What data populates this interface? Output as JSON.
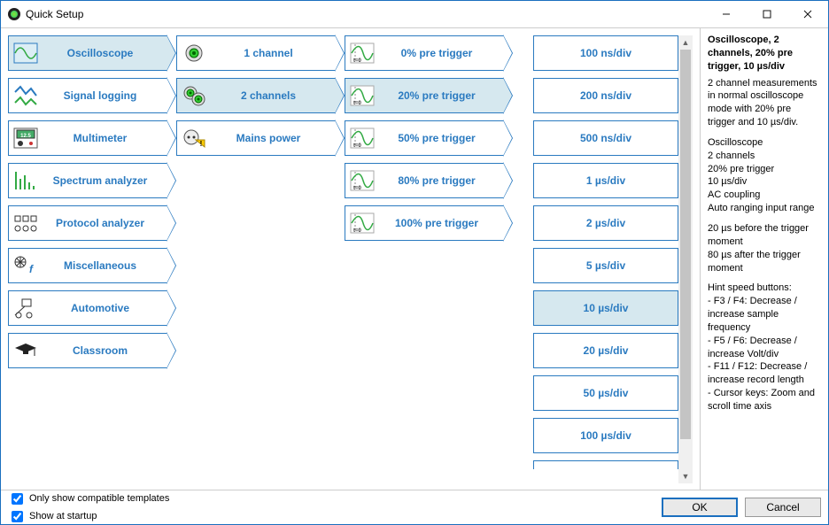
{
  "window": {
    "title": "Quick Setup"
  },
  "accent_color": "#2a7ac0",
  "selected_bg": "#d6e8ef",
  "columns": {
    "categories": [
      {
        "id": "oscilloscope",
        "label": "Oscilloscope",
        "icon": "oscilloscope",
        "selected": true
      },
      {
        "id": "signal-logging",
        "label": "Signal logging",
        "icon": "signal",
        "selected": false
      },
      {
        "id": "multimeter",
        "label": "Multimeter",
        "icon": "multimeter",
        "selected": false
      },
      {
        "id": "spectrum",
        "label": "Spectrum analyzer",
        "icon": "spectrum",
        "selected": false
      },
      {
        "id": "protocol",
        "label": "Protocol analyzer",
        "icon": "protocol",
        "selected": false
      },
      {
        "id": "misc",
        "label": "Miscellaneous",
        "icon": "misc",
        "selected": false
      },
      {
        "id": "automotive",
        "label": "Automotive",
        "icon": "automotive",
        "selected": false
      },
      {
        "id": "classroom",
        "label": "Classroom",
        "icon": "classroom",
        "selected": false
      }
    ],
    "channels": [
      {
        "id": "ch1",
        "label": "1 channel",
        "icon": "bnc1",
        "selected": false
      },
      {
        "id": "ch2",
        "label": "2 channels",
        "icon": "bnc2",
        "selected": true
      },
      {
        "id": "mains",
        "label": "Mains power",
        "icon": "mains",
        "selected": false
      }
    ],
    "trigger": [
      {
        "id": "t0",
        "label": "0% pre trigger",
        "icon": "wave",
        "selected": false
      },
      {
        "id": "t20",
        "label": "20% pre trigger",
        "icon": "wave",
        "selected": true
      },
      {
        "id": "t50",
        "label": "50% pre trigger",
        "icon": "wave",
        "selected": false
      },
      {
        "id": "t80",
        "label": "80% pre trigger",
        "icon": "wave",
        "selected": false
      },
      {
        "id": "t100",
        "label": "100% pre trigger",
        "icon": "wave",
        "selected": false
      }
    ],
    "timebase": [
      {
        "id": "tb0",
        "label": "100 ns/div",
        "selected": false
      },
      {
        "id": "tb1",
        "label": "200 ns/div",
        "selected": false
      },
      {
        "id": "tb2",
        "label": "500 ns/div",
        "selected": false
      },
      {
        "id": "tb3",
        "label": "1 µs/div",
        "selected": false
      },
      {
        "id": "tb4",
        "label": "2 µs/div",
        "selected": false
      },
      {
        "id": "tb5",
        "label": "5 µs/div",
        "selected": false
      },
      {
        "id": "tb6",
        "label": "10 µs/div",
        "selected": true
      },
      {
        "id": "tb7",
        "label": "20 µs/div",
        "selected": false
      },
      {
        "id": "tb8",
        "label": "50 µs/div",
        "selected": false
      },
      {
        "id": "tb9",
        "label": "100 µs/div",
        "selected": false
      }
    ]
  },
  "info": {
    "title": "Oscilloscope, 2 channels, 20% pre trigger, 10 µs/div",
    "summary": "2 channel measurements in normal oscilloscope mode with 20% pre trigger and 10 µs/div.",
    "bullets": [
      "Oscilloscope",
      "2 channels",
      "20% pre trigger",
      "10 µs/div",
      "AC coupling",
      "Auto ranging input range"
    ],
    "timing": [
      "20 µs before the trigger moment",
      "80 µs after the trigger moment"
    ],
    "hints_title": "Hint speed buttons:",
    "hints": [
      " - F3 / F4:  Decrease / increase sample frequency",
      " - F5 / F6:  Decrease / increase Volt/div",
      " - F11 / F12:  Decrease / increase record length",
      " - Cursor keys: Zoom and scroll time axis"
    ]
  },
  "footer": {
    "check1": "Only show compatible templates",
    "check2": "Show at startup",
    "ok": "OK",
    "cancel": "Cancel"
  }
}
